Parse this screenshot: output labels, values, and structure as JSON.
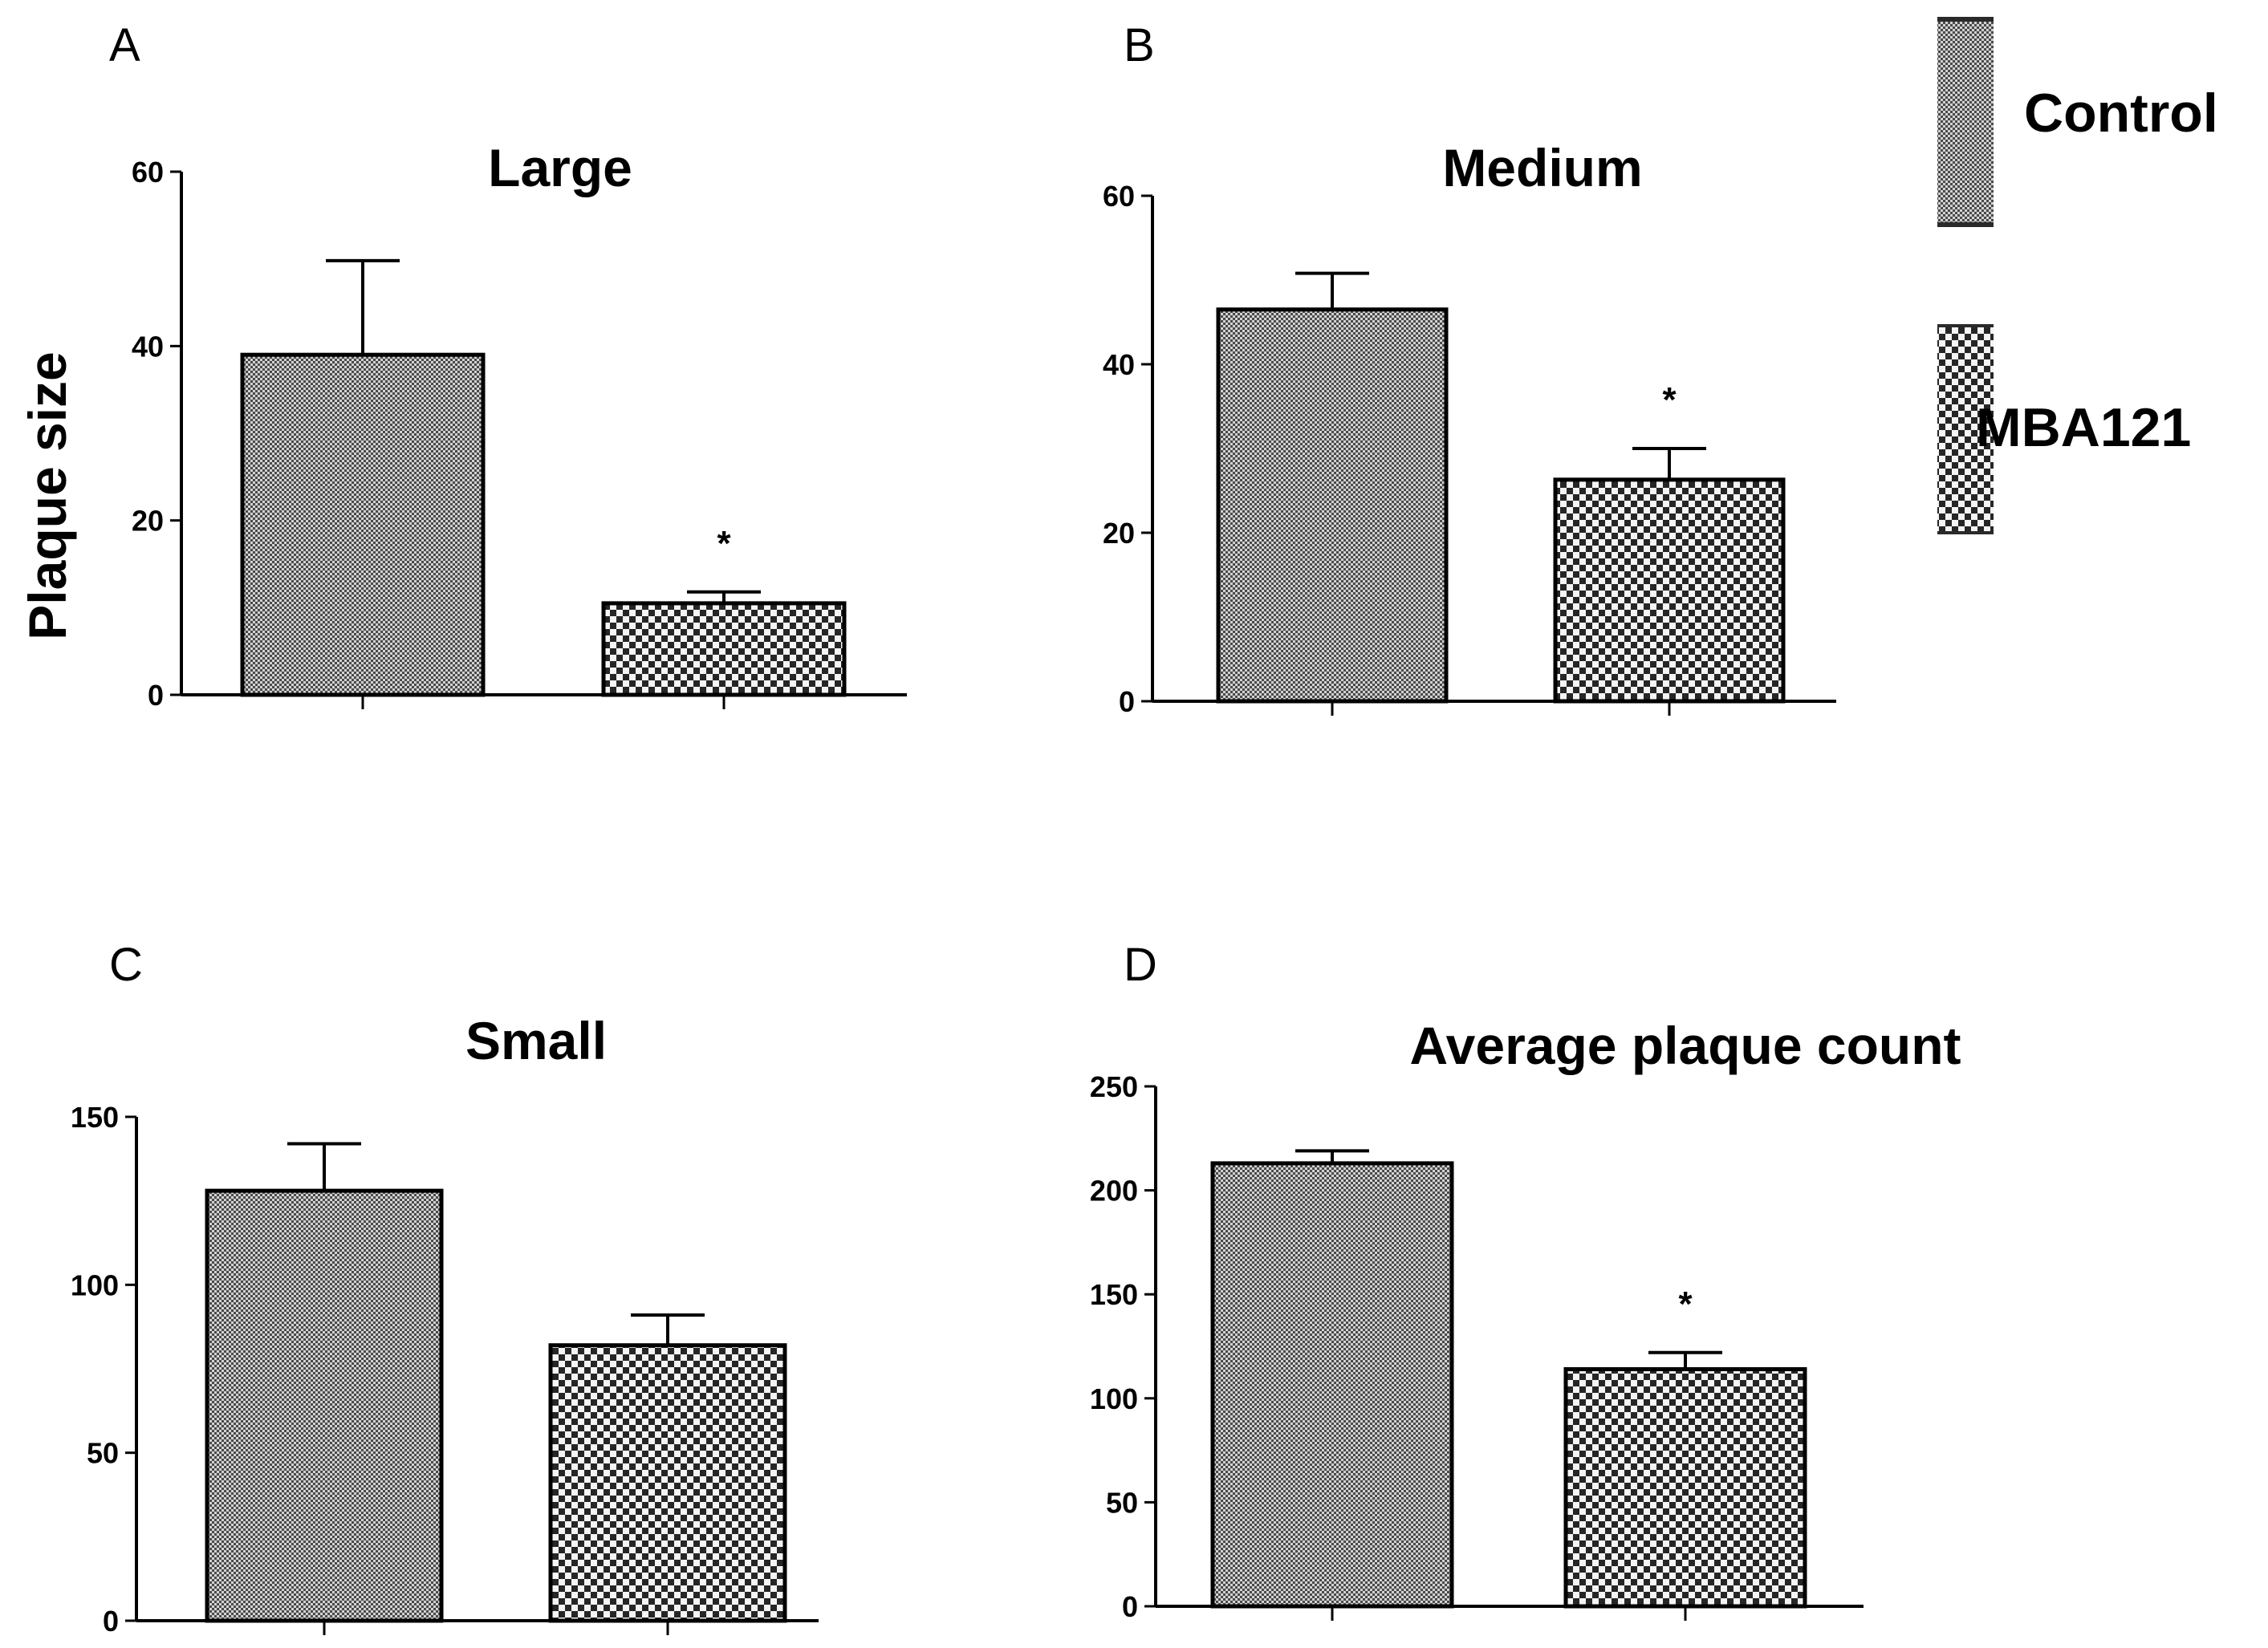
{
  "figure": {
    "ylabel": "Plaque size",
    "legend": [
      {
        "name": "Control",
        "pattern": "fine"
      },
      {
        "name": "MBA121",
        "pattern": "checker"
      }
    ]
  },
  "chart_data": [
    {
      "panel": "A",
      "type": "bar",
      "title": "Large",
      "categories": [
        "Control",
        "MBA121"
      ],
      "values": [
        39,
        10.5
      ],
      "errors": [
        10.8,
        1.3
      ],
      "significant": [
        false,
        true
      ],
      "sig_mark": "*",
      "ylim": [
        0,
        60
      ],
      "yticks": [
        0,
        20,
        40,
        60
      ],
      "ylabel": "Plaque size"
    },
    {
      "panel": "B",
      "type": "bar",
      "title": "Medium",
      "categories": [
        "Control",
        "MBA121"
      ],
      "values": [
        46.5,
        26.3
      ],
      "errors": [
        4.3,
        3.7
      ],
      "significant": [
        false,
        true
      ],
      "sig_mark": "*",
      "ylim": [
        0,
        60
      ],
      "yticks": [
        0,
        20,
        40,
        60
      ],
      "ylabel": ""
    },
    {
      "panel": "C",
      "type": "bar",
      "title": "Small",
      "categories": [
        "Control",
        "MBA121"
      ],
      "values": [
        128,
        82
      ],
      "errors": [
        14,
        9
      ],
      "significant": [
        false,
        false
      ],
      "sig_mark": "*",
      "ylim": [
        0,
        150
      ],
      "yticks": [
        0,
        50,
        100,
        150
      ],
      "ylabel": ""
    },
    {
      "panel": "D",
      "type": "bar",
      "title": "Average plaque count",
      "categories": [
        "Control",
        "MBA121"
      ],
      "values": [
        213,
        114
      ],
      "errors": [
        6,
        8
      ],
      "significant": [
        false,
        true
      ],
      "sig_mark": "*",
      "ylim": [
        0,
        250
      ],
      "yticks": [
        0,
        50,
        100,
        150,
        200,
        250
      ],
      "ylabel": ""
    }
  ]
}
